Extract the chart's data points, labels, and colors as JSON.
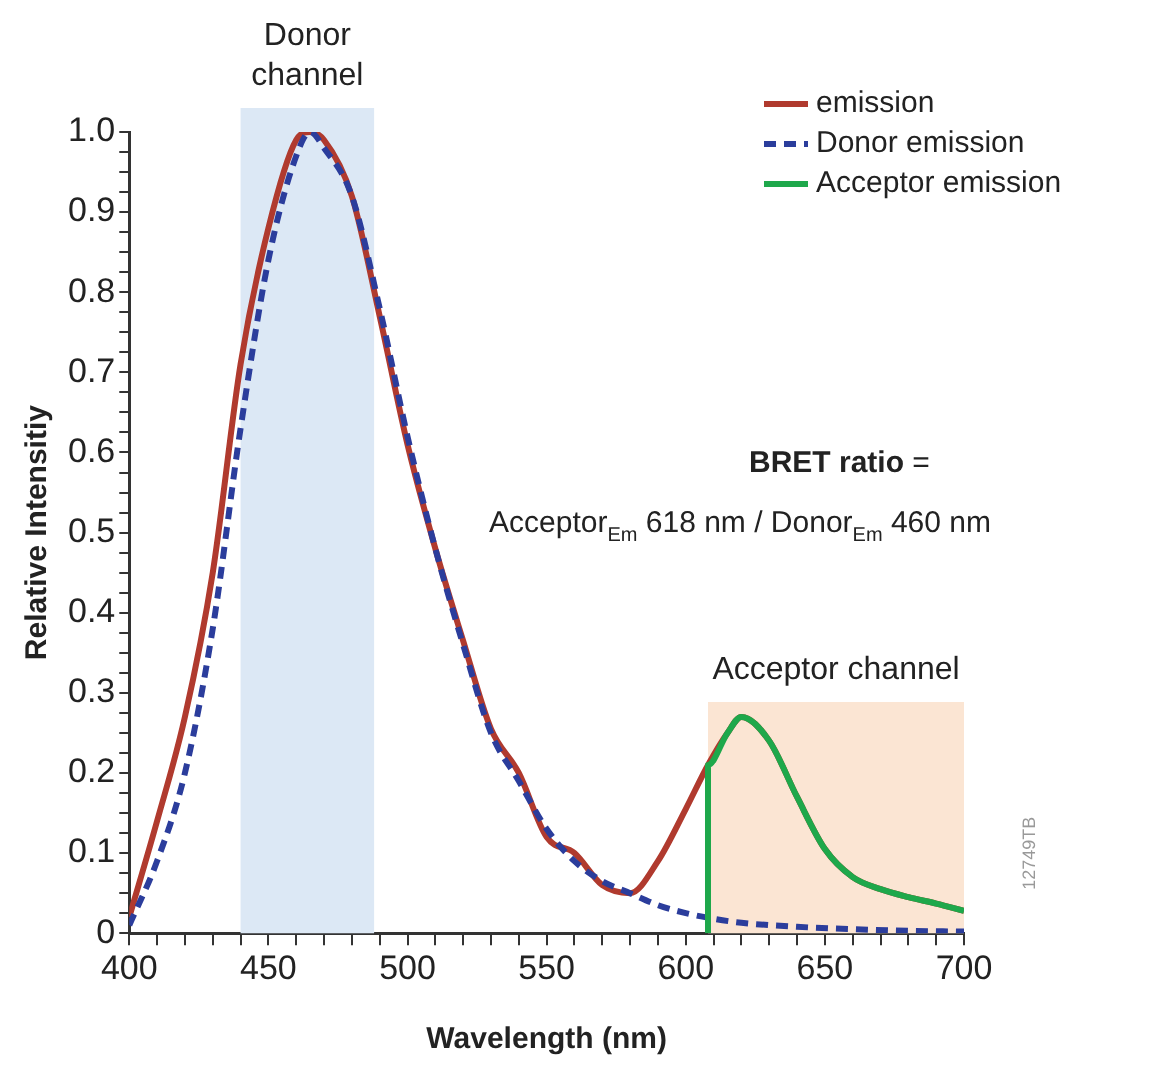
{
  "chart_data": {
    "type": "line",
    "xlabel": "Wavelength (nm)",
    "ylabel": "Relative Intensitiy",
    "xlim": [
      400,
      700
    ],
    "ylim": [
      0,
      1
    ],
    "xticks": [
      400,
      {
        "value": 410,
        "label": null
      },
      {
        "value": 420,
        "label": null
      },
      {
        "value": 430,
        "label": null
      },
      {
        "value": 440,
        "label": null
      },
      450,
      {
        "value": 460,
        "label": null
      },
      {
        "value": 470,
        "label": null
      },
      {
        "value": 480,
        "label": null
      },
      {
        "value": 490,
        "label": null
      },
      500,
      {
        "value": 510,
        "label": null
      },
      {
        "value": 520,
        "label": null
      },
      {
        "value": 530,
        "label": null
      },
      {
        "value": 540,
        "label": null
      },
      550,
      {
        "value": 560,
        "label": null
      },
      {
        "value": 570,
        "label": null
      },
      {
        "value": 580,
        "label": null
      },
      {
        "value": 590,
        "label": null
      },
      600,
      {
        "value": 610,
        "label": null
      },
      {
        "value": 620,
        "label": null
      },
      {
        "value": 630,
        "label": null
      },
      {
        "value": 640,
        "label": null
      },
      650,
      {
        "value": 660,
        "label": null
      },
      {
        "value": 670,
        "label": null
      },
      {
        "value": 680,
        "label": null
      },
      {
        "value": 690,
        "label": null
      },
      700
    ],
    "yticks": [
      0,
      {
        "value": 0.025,
        "label": null
      },
      {
        "value": 0.05,
        "label": null
      },
      {
        "value": 0.075,
        "label": null
      },
      0.1,
      {
        "value": 0.125,
        "label": null
      },
      {
        "value": 0.15,
        "label": null
      },
      {
        "value": 0.175,
        "label": null
      },
      0.2,
      {
        "value": 0.225,
        "label": null
      },
      {
        "value": 0.25,
        "label": null
      },
      {
        "value": 0.275,
        "label": null
      },
      0.3,
      {
        "value": 0.325,
        "label": null
      },
      {
        "value": 0.35,
        "label": null
      },
      {
        "value": 0.375,
        "label": null
      },
      0.4,
      {
        "value": 0.425,
        "label": null
      },
      {
        "value": 0.45,
        "label": null
      },
      {
        "value": 0.475,
        "label": null
      },
      0.5,
      {
        "value": 0.525,
        "label": null
      },
      {
        "value": 0.55,
        "label": null
      },
      {
        "value": 0.575,
        "label": null
      },
      0.6,
      {
        "value": 0.625,
        "label": null
      },
      {
        "value": 0.65,
        "label": null
      },
      {
        "value": 0.675,
        "label": null
      },
      0.7,
      {
        "value": 0.725,
        "label": null
      },
      {
        "value": 0.75,
        "label": null
      },
      {
        "value": 0.775,
        "label": null
      },
      0.8,
      {
        "value": 0.825,
        "label": null
      },
      {
        "value": 0.85,
        "label": null
      },
      {
        "value": 0.875,
        "label": null
      },
      0.9,
      {
        "value": 0.925,
        "label": null
      },
      {
        "value": 0.95,
        "label": null
      },
      {
        "value": 0.975,
        "label": null
      },
      {
        "value": 1,
        "label": "1.0"
      }
    ],
    "grid": false,
    "legend": "top right",
    "marker": "none",
    "x": [
      400,
      410,
      420,
      430,
      440,
      450,
      460,
      465,
      470,
      480,
      490,
      500,
      510,
      520,
      530,
      540,
      550,
      560,
      570,
      580,
      590,
      600,
      608,
      615,
      620,
      630,
      640,
      650,
      660,
      670,
      680,
      690,
      700
    ],
    "series": [
      {
        "name": "emission",
        "color": "#b03a2e",
        "line_style": "solid",
        "values": [
          0.02,
          0.14,
          0.27,
          0.45,
          0.71,
          0.88,
          0.99,
          1.0,
          0.99,
          0.92,
          0.77,
          0.61,
          0.48,
          0.365,
          0.255,
          0.2,
          0.12,
          0.1,
          0.06,
          0.05,
          0.09,
          0.155,
          0.21,
          0.25,
          0.27,
          0.24,
          0.17,
          0.105,
          0.07,
          0.055,
          0.045,
          0.037,
          0.028
        ]
      },
      {
        "name": "Donor emission",
        "color": "#2b3d9c",
        "line_style": "dashed",
        "x": [
          400,
          410,
          420,
          430,
          440,
          450,
          460,
          465,
          470,
          480,
          490,
          500,
          510,
          520,
          530,
          540,
          550,
          560,
          570,
          580,
          590,
          600,
          610,
          620,
          640,
          660,
          680,
          700
        ],
        "values": [
          0.01,
          0.09,
          0.2,
          0.38,
          0.63,
          0.84,
          0.97,
          1.0,
          0.98,
          0.92,
          0.78,
          0.62,
          0.48,
          0.36,
          0.25,
          0.19,
          0.13,
          0.09,
          0.065,
          0.05,
          0.035,
          0.025,
          0.018,
          0.013,
          0.008,
          0.005,
          0.003,
          0.002
        ]
      },
      {
        "name": "Acceptor emission",
        "color": "#1ea84b",
        "line_style": "solid",
        "x": [
          608,
          608,
          615,
          620,
          630,
          640,
          650,
          660,
          670,
          680,
          690,
          700
        ],
        "values": [
          0,
          0.21,
          0.25,
          0.27,
          0.24,
          0.17,
          0.105,
          0.07,
          0.055,
          0.045,
          0.037,
          0.028
        ]
      }
    ],
    "bands": [
      {
        "axis": "x",
        "from": 440,
        "to": 488,
        "label": "Donor\nchannel",
        "color": "#dce8f5"
      },
      {
        "axis": "x",
        "from": 608,
        "to": 700,
        "label": "Acceptor channel",
        "color": "#fbe5d3"
      }
    ],
    "annotations": [
      "BRET ratio =",
      "Acceptor$_{Em}$ 618 nm / Donor$_{Em}$ 460 nm",
      "12749TB"
    ]
  }
}
